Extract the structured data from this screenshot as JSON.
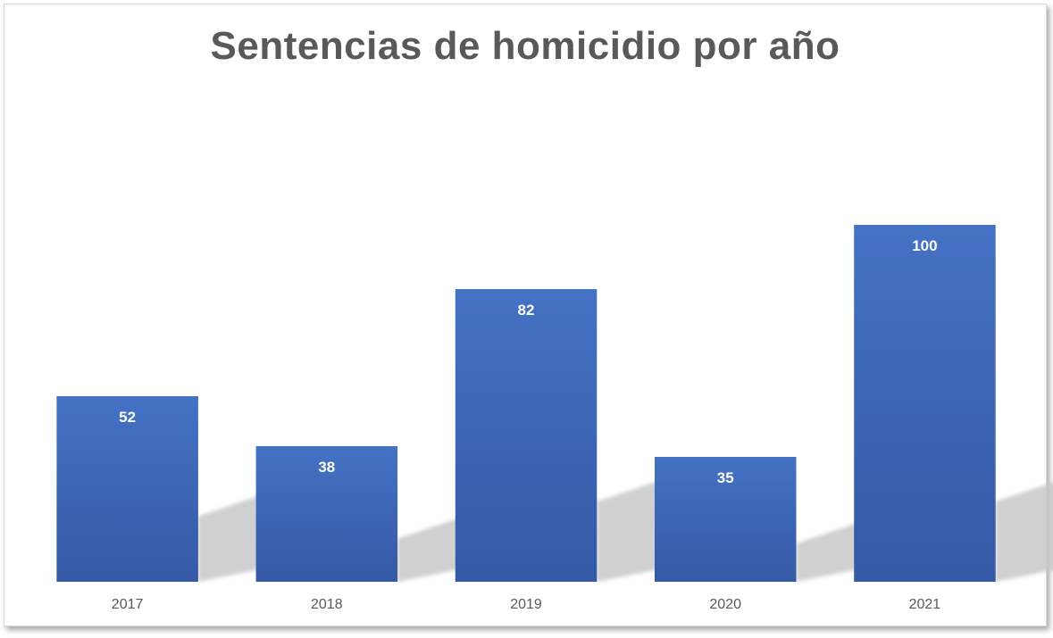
{
  "chart_data": {
    "type": "bar",
    "title": "Sentencias de homicidio por año",
    "categories": [
      "2017",
      "2018",
      "2019",
      "2020",
      "2021"
    ],
    "values": [
      52,
      38,
      82,
      35,
      100
    ],
    "ylim": [
      0,
      120
    ],
    "grid": false,
    "legend": "none",
    "data_labels": true,
    "bar_color": "#4472C4",
    "bar_color_dark": "#3559A5"
  }
}
